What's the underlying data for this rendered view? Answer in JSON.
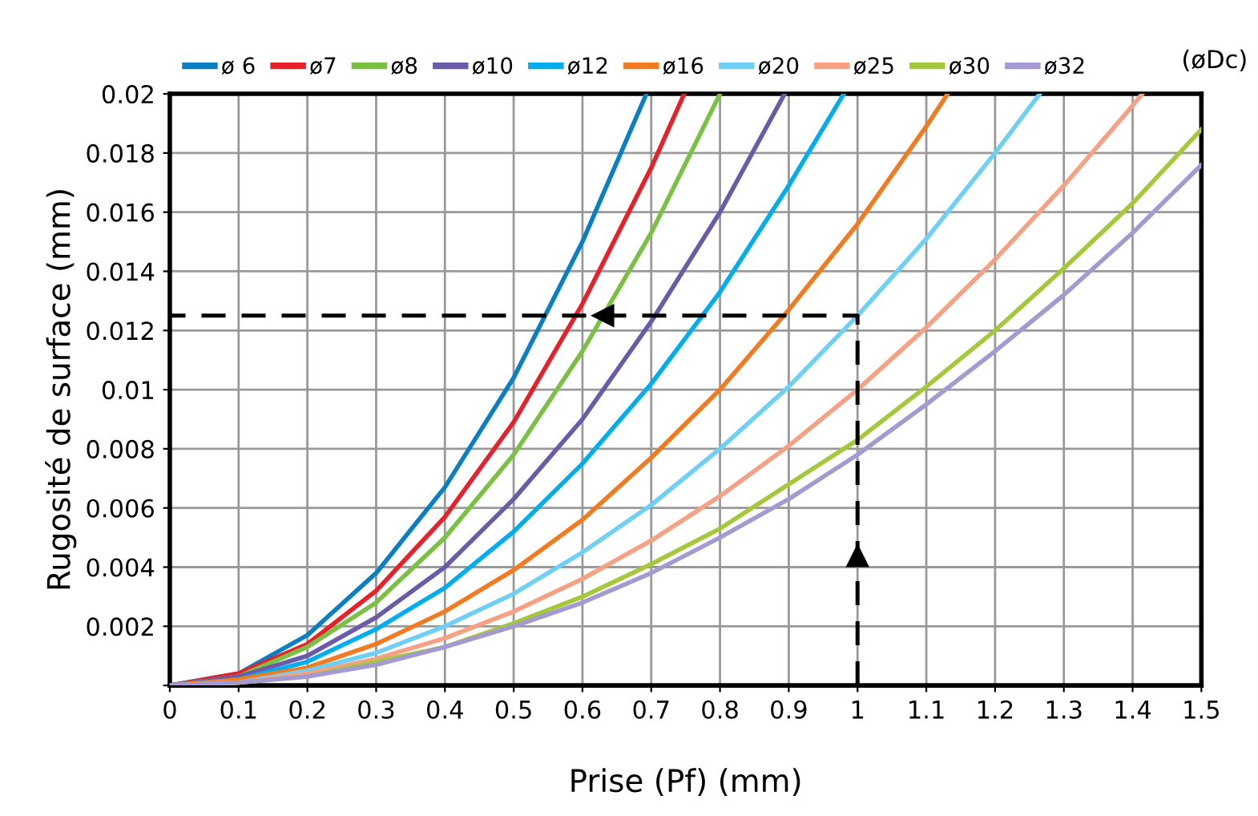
{
  "chart_data": {
    "type": "line",
    "xlabel": "Prise (Pf) (mm)",
    "ylabel": "Rugosité de surface (mm)",
    "legend_title": "(øDc)",
    "legend": "top",
    "grid": true,
    "marker": "none",
    "line_style": "solid",
    "xlim": [
      0,
      1.5
    ],
    "ylim": [
      0,
      0.02
    ],
    "xticks": [
      0,
      0.1,
      0.2,
      0.3,
      0.4,
      0.5,
      0.6,
      0.7,
      0.8,
      0.9,
      1,
      1.1,
      1.2,
      1.3,
      1.4,
      1.5
    ],
    "yticks": [
      {
        "value": 0,
        "label": null
      },
      0.002,
      0.004,
      0.006,
      0.008,
      0.01,
      0.012,
      0.014,
      0.016,
      0.018,
      0.02
    ],
    "series": [
      {
        "name": "ø 6",
        "color": "#0a7fc4",
        "x": [
          0,
          0.1,
          0.2,
          0.3,
          0.4,
          0.5,
          0.6,
          0.693
        ],
        "values": [
          0,
          0.0004,
          0.0017,
          0.0038,
          0.0067,
          0.0104,
          0.015,
          0.02
        ]
      },
      {
        "name": "ø7",
        "color": "#e8202a",
        "x": [
          0,
          0.1,
          0.2,
          0.3,
          0.4,
          0.5,
          0.6,
          0.7,
          0.748
        ],
        "values": [
          0,
          0.0004,
          0.0014,
          0.0032,
          0.0057,
          0.0089,
          0.0129,
          0.0175,
          0.02
        ]
      },
      {
        "name": "ø8",
        "color": "#7ac143",
        "x": [
          0,
          0.1,
          0.2,
          0.3,
          0.4,
          0.5,
          0.6,
          0.7,
          0.8
        ],
        "values": [
          0,
          0.0003,
          0.0013,
          0.0028,
          0.005,
          0.0078,
          0.0113,
          0.0153,
          0.02
        ]
      },
      {
        "name": "ø10",
        "color": "#6a5aa8",
        "x": [
          0,
          0.1,
          0.2,
          0.3,
          0.4,
          0.5,
          0.6,
          0.7,
          0.8,
          0.894
        ],
        "values": [
          0,
          0.0003,
          0.001,
          0.0023,
          0.004,
          0.0063,
          0.009,
          0.0123,
          0.016,
          0.02
        ]
      },
      {
        "name": "ø12",
        "color": "#00aeef",
        "x": [
          0,
          0.1,
          0.2,
          0.3,
          0.4,
          0.5,
          0.6,
          0.7,
          0.8,
          0.9,
          0.98
        ],
        "values": [
          0,
          0.0002,
          0.0008,
          0.0019,
          0.0033,
          0.0052,
          0.0075,
          0.0102,
          0.0133,
          0.0169,
          0.02
        ]
      },
      {
        "name": "ø16",
        "color": "#f47a20",
        "x": [
          0,
          0.1,
          0.2,
          0.3,
          0.4,
          0.5,
          0.6,
          0.7,
          0.8,
          0.9,
          1,
          1.1,
          1.131
        ],
        "values": [
          0,
          0.0002,
          0.0006,
          0.0014,
          0.0025,
          0.0039,
          0.0056,
          0.0077,
          0.01,
          0.0127,
          0.0156,
          0.0189,
          0.02
        ]
      },
      {
        "name": "ø20",
        "color": "#6fd0f6",
        "x": [
          0,
          0.1,
          0.2,
          0.3,
          0.4,
          0.5,
          0.6,
          0.7,
          0.8,
          0.9,
          1,
          1.1,
          1.2,
          1.265
        ],
        "values": [
          0,
          0.0001,
          0.0005,
          0.0011,
          0.002,
          0.0031,
          0.0045,
          0.0061,
          0.008,
          0.0101,
          0.0125,
          0.0151,
          0.018,
          0.02
        ]
      },
      {
        "name": "ø25",
        "color": "#f7a184",
        "x": [
          0,
          0.1,
          0.2,
          0.3,
          0.4,
          0.5,
          0.6,
          0.7,
          0.8,
          0.9,
          1,
          1.1,
          1.2,
          1.3,
          1.4,
          1.414
        ],
        "values": [
          0,
          0.0001,
          0.0004,
          0.0009,
          0.0016,
          0.0025,
          0.0036,
          0.0049,
          0.0064,
          0.0081,
          0.01,
          0.0121,
          0.0144,
          0.0169,
          0.0196,
          0.02
        ]
      },
      {
        "name": "ø30",
        "color": "#a3c93a",
        "x": [
          0,
          0.1,
          0.2,
          0.3,
          0.4,
          0.5,
          0.6,
          0.7,
          0.8,
          0.9,
          1,
          1.1,
          1.2,
          1.3,
          1.4,
          1.5
        ],
        "values": [
          0,
          0.0001,
          0.0003,
          0.0008,
          0.0013,
          0.0021,
          0.003,
          0.0041,
          0.0053,
          0.0068,
          0.0083,
          0.0101,
          0.012,
          0.0141,
          0.0163,
          0.0188
        ]
      },
      {
        "name": "ø32",
        "color": "#a499d0",
        "x": [
          0,
          0.1,
          0.2,
          0.3,
          0.4,
          0.5,
          0.6,
          0.7,
          0.8,
          0.9,
          1,
          1.1,
          1.2,
          1.3,
          1.4,
          1.5
        ],
        "values": [
          0,
          0.0001,
          0.0003,
          0.0007,
          0.0013,
          0.002,
          0.0028,
          0.0038,
          0.005,
          0.0063,
          0.0078,
          0.0095,
          0.0113,
          0.0132,
          0.0153,
          0.0176
        ]
      },
      {
        "color": "#000000",
        "line_style": "dashed",
        "x": [
          1,
          1,
          0
        ],
        "values": [
          0,
          0.0125,
          0.0125
        ]
      }
    ]
  }
}
